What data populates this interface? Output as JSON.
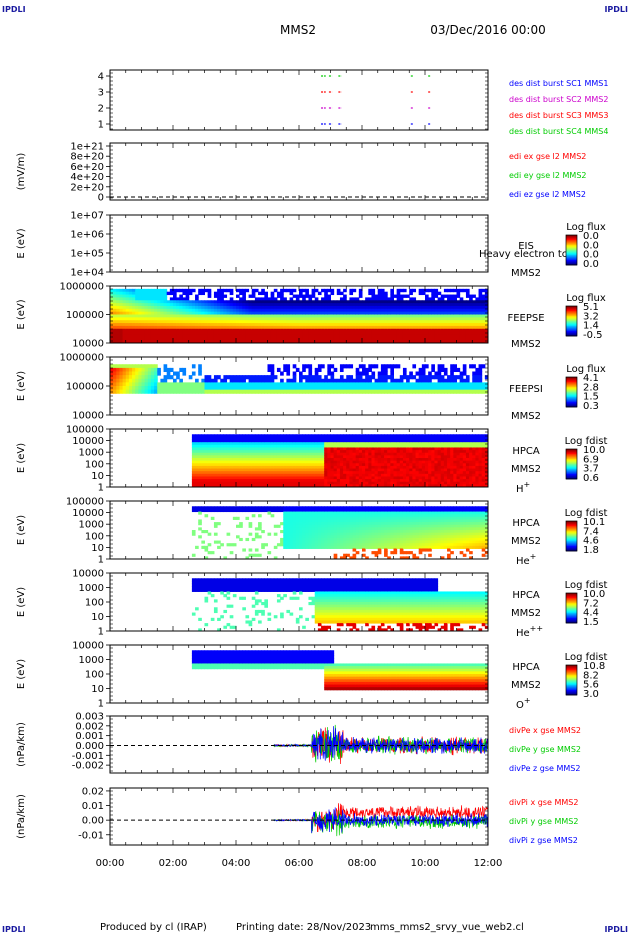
{
  "header": {
    "corner_left_top": "IPDLI",
    "corner_right_top": "IPDLI",
    "corner_left_bottom": "IPDLI",
    "corner_right_bottom": "IPDLI",
    "spacecraft": "MMS2",
    "date": "03/Dec/2016 00:00"
  },
  "footer": {
    "produced_by": "Produced by cl (IRAP)",
    "printing_date": "Printing date: 28/Nov/2023",
    "filename": "mms_mms2_srvy_vue_web2.cl"
  },
  "time_axis": [
    "00:00",
    "02:00",
    "04:00",
    "06:00",
    "08:00",
    "10:00",
    "12:00"
  ],
  "colors": {
    "red": "#ff0000",
    "green": "#00cc00",
    "blue": "#0000ff",
    "magenta": "#cc00cc",
    "navy": "#1a1aa0"
  },
  "chart_data": [
    {
      "type": "scatter",
      "id": "burst",
      "yticks": [
        "4",
        "3",
        "2",
        "1"
      ],
      "legend": [
        {
          "text": "des dist burst SC1 MMS1",
          "color": "#0000ff"
        },
        {
          "text": "des dist burst SC2 MMS2",
          "color": "#cc00cc"
        },
        {
          "text": "des dist burst SC3 MMS3",
          "color": "#ff0000"
        },
        {
          "text": "des dist burst SC4 MMS4",
          "color": "#00cc00"
        }
      ],
      "segments_hours": [
        [
          6.7,
          6.85
        ],
        [
          6.95,
          7.05
        ],
        [
          7.25,
          7.35
        ],
        [
          9.55,
          9.62
        ],
        [
          10.1,
          10.17
        ]
      ],
      "levels": [
        4,
        3,
        2,
        1
      ]
    },
    {
      "type": "line",
      "id": "edi",
      "ylabel": "(mV/m)",
      "yticks": [
        "1e+21",
        "8e+20",
        "6e+20",
        "4e+20",
        "2e+20",
        "0"
      ],
      "legend": [
        {
          "text": "edi ex gse l2 MMS2",
          "color": "#ff0000"
        },
        {
          "text": "edi ey gse l2 MMS2",
          "color": "#00cc00"
        },
        {
          "text": "edi ez gse l2 MMS2",
          "color": "#0000ff"
        }
      ],
      "zero_line": 0
    },
    {
      "type": "heatmap",
      "id": "eis",
      "ylabel": "E (eV)",
      "yticks": [
        "1e+07",
        "1e+06",
        "1e+05",
        "1e+04"
      ],
      "instrument": "EIS",
      "overlay": "Heavy electron tc",
      "sc": "MMS2",
      "cb_title": "Log flux",
      "cb_ticks": [
        "0.0",
        "0.0",
        "0.0",
        "0.0"
      ]
    },
    {
      "type": "heatmap",
      "id": "feepse",
      "ylabel": "E (eV)",
      "yticks": [
        "1000000",
        "100000",
        "10000"
      ],
      "instrument": "FEEPSE",
      "sc": "MMS2",
      "cb_title": "Log flux",
      "cb_ticks": [
        "5.1",
        "3.2",
        "1.4",
        "-0.5"
      ]
    },
    {
      "type": "heatmap",
      "id": "feepsi",
      "ylabel": "E (eV)",
      "yticks": [
        "1000000",
        "100000",
        "10000"
      ],
      "instrument": "FEEPSI",
      "sc": "MMS2",
      "cb_title": "Log flux",
      "cb_ticks": [
        "4.1",
        "2.8",
        "1.5",
        "0.3"
      ]
    },
    {
      "type": "heatmap",
      "id": "hpca_h",
      "ylabel": "E (eV)",
      "yticks": [
        "100000",
        "10000",
        "1000",
        "100",
        "10",
        "1"
      ],
      "instrument": "HPCA",
      "sc": "MMS2",
      "species": "H",
      "charge": "+",
      "cb_title": "Log fdist",
      "cb_ticks": [
        "10.0",
        "6.9",
        "3.7",
        "0.6"
      ]
    },
    {
      "type": "heatmap",
      "id": "hpca_he",
      "ylabel": "E (eV)",
      "yticks": [
        "100000",
        "10000",
        "1000",
        "100",
        "10",
        "1"
      ],
      "instrument": "HPCA",
      "sc": "MMS2",
      "species": "He",
      "charge": "+",
      "cb_title": "Log fdist",
      "cb_ticks": [
        "10.1",
        "7.4",
        "4.6",
        "1.8"
      ]
    },
    {
      "type": "heatmap",
      "id": "hpca_hepp",
      "ylabel": "E (eV)",
      "yticks": [
        "10000",
        "1000",
        "100",
        "10",
        "1"
      ],
      "instrument": "HPCA",
      "sc": "MMS2",
      "species": "He",
      "charge": "++",
      "cb_title": "Log fdist",
      "cb_ticks": [
        "10.0",
        "7.2",
        "4.4",
        "1.5"
      ]
    },
    {
      "type": "heatmap",
      "id": "hpca_o",
      "ylabel": "E (eV)",
      "yticks": [
        "10000",
        "1000",
        "100",
        "10",
        "1"
      ],
      "instrument": "HPCA",
      "sc": "MMS2",
      "species": "O",
      "charge": "+",
      "cb_title": "Log fdist",
      "cb_ticks": [
        "10.8",
        "8.2",
        "5.6",
        "3.0"
      ]
    },
    {
      "type": "line",
      "id": "divpe",
      "ylabel": "(nPa/km)",
      "yticks": [
        "0.003",
        "0.002",
        "0.001",
        "0.000",
        "-0.001",
        "-0.002"
      ],
      "ylim": [
        -0.0028,
        0.003
      ],
      "legend": [
        {
          "text": "divPe x gse MMS2",
          "color": "#ff0000"
        },
        {
          "text": "divPe y gse MMS2",
          "color": "#00cc00"
        },
        {
          "text": "divPe z gse MMS2",
          "color": "#0000ff"
        }
      ],
      "amplitude": 0.0012
    },
    {
      "type": "line",
      "id": "divpi",
      "ylabel": "(nPa/km)",
      "yticks": [
        "0.02",
        "0.01",
        "0.00",
        "-0.01"
      ],
      "ylim": [
        -0.017,
        0.022
      ],
      "legend": [
        {
          "text": "divPi x gse MMS2",
          "color": "#ff0000"
        },
        {
          "text": "divPi y gse MMS2",
          "color": "#00cc00"
        },
        {
          "text": "divPi z gse MMS2",
          "color": "#0000ff"
        }
      ],
      "amplitude": 0.006
    }
  ]
}
